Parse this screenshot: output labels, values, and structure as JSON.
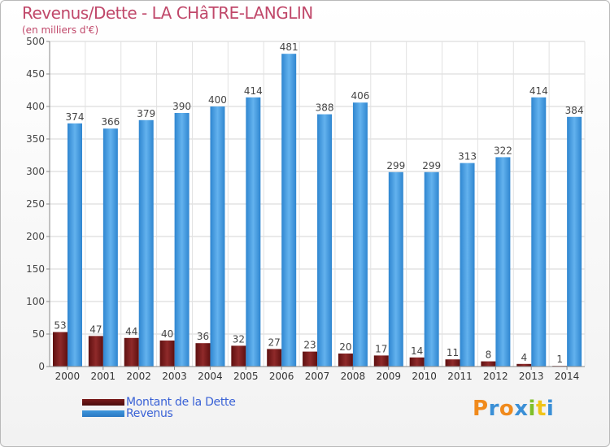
{
  "header": {
    "title": "Revenus/Dette - LA CHâTRE-LANGLIN",
    "subtitle": "(en milliers d'€)"
  },
  "chart_data": {
    "type": "bar",
    "categories": [
      "2000",
      "2001",
      "2002",
      "2003",
      "2004",
      "2005",
      "2006",
      "2007",
      "2008",
      "2009",
      "2010",
      "2011",
      "2012",
      "2013",
      "2014"
    ],
    "series": [
      {
        "name": "Montant de la Dette",
        "values": [
          53,
          47,
          44,
          40,
          36,
          32,
          27,
          23,
          20,
          17,
          14,
          11,
          8,
          4,
          1
        ],
        "color": "#7a1a1a"
      },
      {
        "name": "Revenus",
        "values": [
          374,
          366,
          379,
          390,
          400,
          414,
          481,
          388,
          406,
          299,
          299,
          313,
          322,
          414,
          384
        ],
        "color": "#3f97dd"
      }
    ],
    "ylim": [
      0,
      500
    ],
    "yticks": [
      0,
      50,
      100,
      150,
      200,
      250,
      300,
      350,
      400,
      450,
      500
    ],
    "grid": true,
    "legend": "bottom-left"
  },
  "logo": {
    "text": "Proxiti",
    "colors": [
      "#f08a1c",
      "#3a8fd6",
      "#f08a1c",
      "#3a8fd6",
      "#7fbf2a",
      "#f0c419",
      "#3a8fd6"
    ]
  }
}
